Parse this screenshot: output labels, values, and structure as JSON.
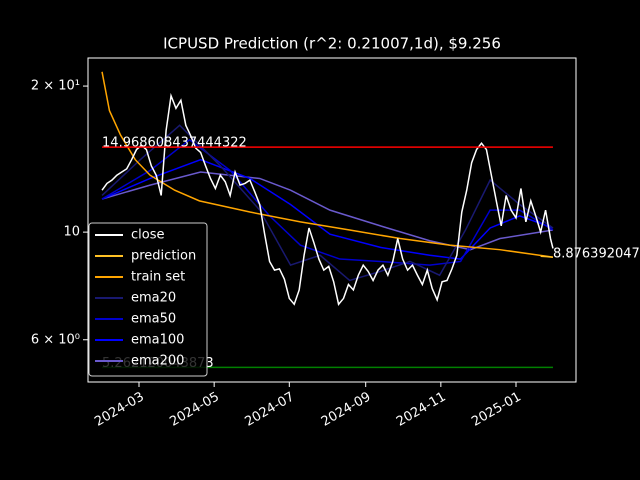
{
  "chart_data": {
    "type": "line",
    "title": "ICPUSD Prediction (r^2: 0.21007,1d), $9.256",
    "log_y": true,
    "xlim": [
      -11.4,
      384.7
    ],
    "ylim": [
      4.91,
      22.85
    ],
    "xticks": [
      {
        "value": 30,
        "label": "2024-03"
      },
      {
        "value": 91,
        "label": "2024-05"
      },
      {
        "value": 152,
        "label": "2024-07"
      },
      {
        "value": 214,
        "label": "2024-09"
      },
      {
        "value": 275,
        "label": "2024-11"
      },
      {
        "value": 336,
        "label": "2025-01"
      }
    ],
    "yticks": [
      {
        "value": 20,
        "label": "2 × 10¹"
      },
      {
        "value": 10,
        "label": "10"
      },
      {
        "value": 6,
        "label": "6 × 10⁰"
      }
    ],
    "legend": "lower left",
    "series": [
      {
        "name": "close",
        "color": "#ffffff",
        "x": [
          0,
          4,
          8,
          12,
          16,
          20,
          24,
          28,
          32,
          36,
          40,
          44,
          48,
          52,
          56,
          60,
          64,
          68,
          72,
          76,
          80,
          84,
          88,
          92,
          96,
          100,
          104,
          108,
          112,
          116,
          120,
          124,
          128,
          132,
          136,
          140,
          144,
          148,
          152,
          156,
          160,
          164,
          168,
          172,
          176,
          180,
          184,
          188,
          192,
          196,
          200,
          204,
          208,
          212,
          216,
          220,
          224,
          228,
          232,
          236,
          240,
          244,
          248,
          252,
          256,
          260,
          264,
          268,
          272,
          276,
          280,
          284,
          288,
          292,
          296,
          300,
          304,
          308,
          312,
          316,
          320,
          324,
          328,
          332,
          336,
          340,
          344,
          348,
          352,
          356,
          360,
          364,
          366
        ],
        "values": [
          12.2,
          12.6,
          12.8,
          13.1,
          13.3,
          13.5,
          14.1,
          14.8,
          15.1,
          14.8,
          13.7,
          13.1,
          11.9,
          16.2,
          19.1,
          18.0,
          18.7,
          16.6,
          15.8,
          14.9,
          14.6,
          13.7,
          12.9,
          12.3,
          13.1,
          12.7,
          11.9,
          13.3,
          12.5,
          12.6,
          12.8,
          12.1,
          11.4,
          9.9,
          8.7,
          8.35,
          8.4,
          8.0,
          7.3,
          7.1,
          7.6,
          8.96,
          10.2,
          9.5,
          8.8,
          8.35,
          8.5,
          7.9,
          7.1,
          7.3,
          7.8,
          7.6,
          8.15,
          8.55,
          8.3,
          7.95,
          8.35,
          8.55,
          8.15,
          8.7,
          9.7,
          8.8,
          8.35,
          8.55,
          8.15,
          7.8,
          8.35,
          7.65,
          7.25,
          7.9,
          7.95,
          8.4,
          8.96,
          11.0,
          12.2,
          13.9,
          14.8,
          15.25,
          14.8,
          13.1,
          11.6,
          10.3,
          11.9,
          11.1,
          10.7,
          12.3,
          10.5,
          11.6,
          10.8,
          10.0,
          11.1,
          9.7,
          9.256
        ]
      },
      {
        "name": "prediction",
        "color": "#ffc125",
        "x": [
          356,
          361,
          366
        ],
        "values": [
          8.92,
          8.9,
          8.876392047
        ]
      },
      {
        "name": "train set",
        "color": "#ffa500",
        "x": [
          0,
          6,
          15,
          27,
          39,
          59,
          79,
          120,
          161,
          201,
          242,
          282,
          323,
          366
        ],
        "values": [
          21.4,
          17.8,
          15.85,
          14.1,
          13.1,
          12.2,
          11.6,
          11.0,
          10.5,
          10.1,
          9.7,
          9.4,
          9.2,
          8.88
        ]
      },
      {
        "name": "ema20",
        "color": "#191970",
        "x": [
          0,
          31,
          63,
          96,
          128,
          153,
          177,
          201,
          226,
          250,
          274,
          295,
          315,
          339,
          366
        ],
        "values": [
          11.9,
          14.1,
          16.6,
          13.7,
          11.1,
          8.55,
          8.96,
          7.95,
          8.3,
          8.7,
          8.15,
          10.1,
          12.8,
          11.4,
          10.2
        ]
      },
      {
        "name": "ema50",
        "color": "#0000cd",
        "x": [
          0,
          39,
          71,
          104,
          136,
          161,
          193,
          226,
          266,
          291,
          315,
          339,
          366
        ],
        "values": [
          11.7,
          13.4,
          15.5,
          13.4,
          10.8,
          9.4,
          8.8,
          8.7,
          8.55,
          8.7,
          11.1,
          11.1,
          10.1
        ]
      },
      {
        "name": "ema100",
        "color": "#0000ff",
        "x": [
          0,
          39,
          80,
          120,
          153,
          185,
          226,
          266,
          291,
          315,
          339,
          366
        ],
        "values": [
          11.7,
          12.9,
          14.1,
          12.9,
          11.4,
          9.9,
          9.3,
          8.96,
          8.8,
          10.2,
          10.8,
          10.2
        ]
      },
      {
        "name": "ema200",
        "color": "#6a5acd",
        "x": [
          0,
          39,
          80,
          128,
          153,
          185,
          226,
          266,
          299,
          323,
          366
        ],
        "values": [
          11.7,
          12.5,
          13.3,
          12.9,
          12.2,
          11.1,
          10.3,
          9.6,
          9.2,
          9.7,
          10.1
        ]
      }
    ],
    "hlines": [
      {
        "value": 14.968608437444322,
        "color": "#ff0000"
      },
      {
        "value": 5.262120043873,
        "color": "#008000"
      }
    ]
  }
}
